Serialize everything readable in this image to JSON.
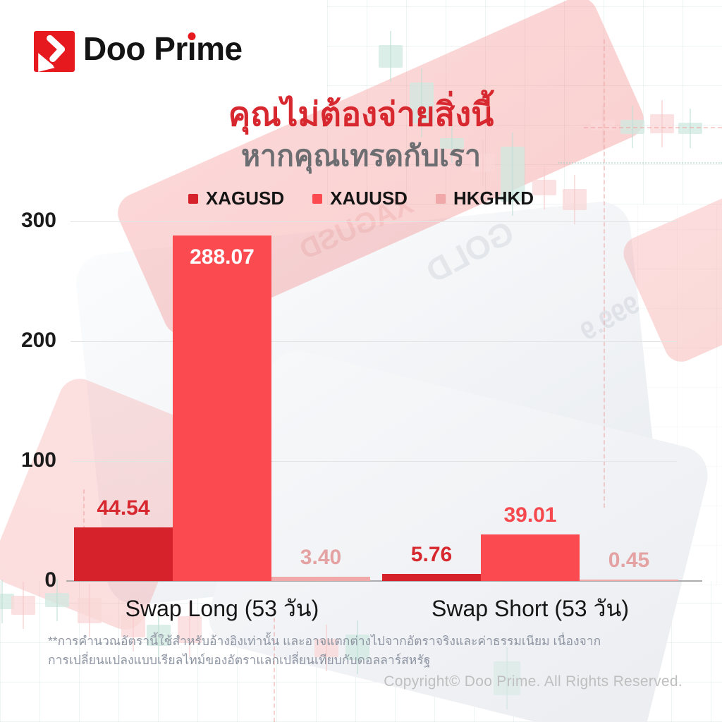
{
  "brand": {
    "name": "Doo Prime"
  },
  "title": {
    "line1": "คุณไม่ต้องจ่ายสิ่งนี้",
    "line2": "หากคุณเทรดกับเรา"
  },
  "chart_data": {
    "type": "bar",
    "categories": [
      "Swap Long (53 วัน)",
      "Swap Short (53 วัน)"
    ],
    "series": [
      {
        "name": "XAGUSD",
        "color": "#d6222a",
        "label_color": "#d7282f",
        "values": [
          44.54,
          5.76
        ]
      },
      {
        "name": "XAUUSD",
        "color": "#fc4b50",
        "label_color": "#f5494d",
        "values": [
          288.07,
          39.01
        ]
      },
      {
        "name": "HKGHKD",
        "color": "#f1a8a8",
        "label_color": "#e5a2a2",
        "values": [
          3.4,
          0.45
        ]
      }
    ],
    "ylim": [
      0,
      300
    ],
    "yticks": [
      0,
      100,
      200,
      300
    ],
    "grid": true,
    "legend_position": "top",
    "inside_label_color": "#ffffff"
  },
  "background": {
    "watermarks": [
      "XAGUSD",
      "GOLD",
      "999.9"
    ]
  },
  "footnote": "**การคำนวณอัตรานี้ใช้สำหรับอ้างอิงเท่านั้น และอาจแตกต่างไปจากอัตราจริงและค่าธรรมเนียม เนื่องจากการเปลี่ยนแปลงแบบเรียลไทม์ของอัตราแลกเปลี่ยนเทียบกับดอลลาร์สหรัฐ",
  "copyright": "Copyright© Doo Prime. All Rights Reserved."
}
